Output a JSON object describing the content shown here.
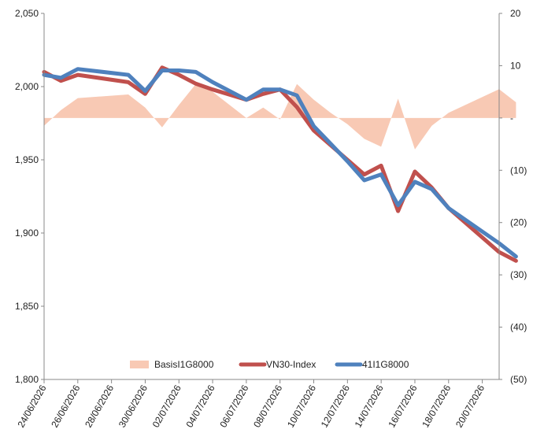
{
  "chart_data": {
    "type": "line",
    "x_ticks": [
      "24/06/2026",
      "26/06/2026",
      "28/06/2026",
      "30/06/2026",
      "02/07/2026",
      "04/07/2026",
      "06/07/2026",
      "08/07/2026",
      "10/07/2026",
      "12/07/2026",
      "14/07/2026",
      "16/07/2026",
      "18/07/2026",
      "20/07/2026"
    ],
    "x_range": [
      "2026-06-24",
      "2026-07-21"
    ],
    "left_axis": {
      "ylim": [
        1800,
        2050
      ],
      "ticks": [
        "1,800",
        "1,850",
        "1,900",
        "1,950",
        "2,000",
        "2,050"
      ],
      "tick_values": [
        1800,
        1850,
        1900,
        1950,
        2000,
        2050
      ]
    },
    "right_axis": {
      "ylim": [
        -50,
        20
      ],
      "ticks": [
        "(50)",
        "(40)",
        "(30)",
        "(20)",
        "(10)",
        "-",
        "10",
        "20"
      ],
      "tick_values": [
        -50,
        -40,
        -30,
        -20,
        -10,
        0,
        10,
        20
      ]
    },
    "grid": false,
    "legend_position": "bottom-center",
    "series": [
      {
        "name": "BasisI1G8000",
        "type": "area",
        "axis": "right",
        "color": "#f8c9b4",
        "points": [
          [
            "2026-06-24",
            -1.5
          ],
          [
            "2026-06-25",
            1.5
          ],
          [
            "2026-06-26",
            3.8
          ],
          [
            "2026-06-29",
            4.5
          ],
          [
            "2026-06-30",
            2
          ],
          [
            "2026-07-01",
            -1.8
          ],
          [
            "2026-07-02",
            2.5
          ],
          [
            "2026-07-03",
            6.5
          ],
          [
            "2026-07-04",
            5
          ],
          [
            "2026-07-06",
            0
          ],
          [
            "2026-07-07",
            2
          ],
          [
            "2026-07-08",
            -0.3
          ],
          [
            "2026-07-09",
            6.5
          ],
          [
            "2026-07-10",
            3.5
          ],
          [
            "2026-07-11",
            1
          ],
          [
            "2026-07-12",
            -1.2
          ],
          [
            "2026-07-13",
            -4
          ],
          [
            "2026-07-14",
            -5.5
          ],
          [
            "2026-07-15",
            3.7
          ],
          [
            "2026-07-16",
            -6
          ],
          [
            "2026-07-17",
            -1.5
          ],
          [
            "2026-07-18",
            1
          ],
          [
            "2026-07-21",
            5.5
          ],
          [
            "2026-07-22",
            3
          ]
        ]
      },
      {
        "name": "VN30-Index",
        "type": "line",
        "axis": "left",
        "color": "#c0504d",
        "points": [
          [
            "2026-06-24",
            2010
          ],
          [
            "2026-06-25",
            2004
          ],
          [
            "2026-06-26",
            2008
          ],
          [
            "2026-06-29",
            2003
          ],
          [
            "2026-06-30",
            1995
          ],
          [
            "2026-07-01",
            2013
          ],
          [
            "2026-07-02",
            2008
          ],
          [
            "2026-07-03",
            2002
          ],
          [
            "2026-07-04",
            1998
          ],
          [
            "2026-07-06",
            1991
          ],
          [
            "2026-07-07",
            1995
          ],
          [
            "2026-07-08",
            1998
          ],
          [
            "2026-07-09",
            1986
          ],
          [
            "2026-07-10",
            1970
          ],
          [
            "2026-07-11",
            1960
          ],
          [
            "2026-07-12",
            1950
          ],
          [
            "2026-07-13",
            1940
          ],
          [
            "2026-07-14",
            1946
          ],
          [
            "2026-07-15",
            1915
          ],
          [
            "2026-07-16",
            1942
          ],
          [
            "2026-07-17",
            1931
          ],
          [
            "2026-07-18",
            1917
          ],
          [
            "2026-07-21",
            1887
          ],
          [
            "2026-07-22",
            1881
          ]
        ]
      },
      {
        "name": "41I1G8000",
        "type": "line",
        "axis": "left",
        "color": "#4f81bd",
        "points": [
          [
            "2026-06-24",
            2008
          ],
          [
            "2026-06-25",
            2006
          ],
          [
            "2026-06-26",
            2012
          ],
          [
            "2026-06-29",
            2008
          ],
          [
            "2026-06-30",
            1997
          ],
          [
            "2026-07-01",
            2011
          ],
          [
            "2026-07-02",
            2011
          ],
          [
            "2026-07-03",
            2010
          ],
          [
            "2026-07-04",
            2003
          ],
          [
            "2026-07-06",
            1991
          ],
          [
            "2026-07-07",
            1998
          ],
          [
            "2026-07-08",
            1998
          ],
          [
            "2026-07-09",
            1994
          ],
          [
            "2026-07-10",
            1973
          ],
          [
            "2026-07-11",
            1961
          ],
          [
            "2026-07-12",
            1949
          ],
          [
            "2026-07-13",
            1936
          ],
          [
            "2026-07-14",
            1940
          ],
          [
            "2026-07-15",
            1919
          ],
          [
            "2026-07-16",
            1935
          ],
          [
            "2026-07-17",
            1930
          ],
          [
            "2026-07-18",
            1917
          ],
          [
            "2026-07-21",
            1893
          ],
          [
            "2026-07-22",
            1884
          ]
        ]
      }
    ]
  }
}
